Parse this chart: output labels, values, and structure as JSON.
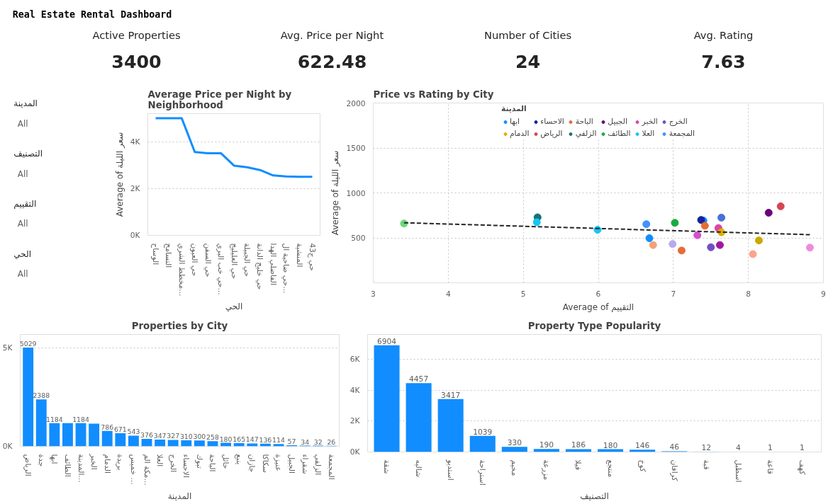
{
  "chart_data": [
    {
      "type": "other",
      "title": "Real Estate Rental Dashboard",
      "annotations": [
        "Active Properties",
        "3400",
        "Avg. Price per Night",
        "622.48",
        "Number of Cities",
        "24",
        "Avg. Rating",
        "7.63"
      ]
    },
    {
      "type": "other",
      "annotations": [
        "المدينة",
        "All",
        "التصنيف",
        "All",
        "التقييم",
        "All",
        "الحي",
        "All"
      ]
    },
    {
      "type": "line",
      "title": "Average Price per Night by Neighborhood",
      "xlabel": "الحي",
      "ylabel": "Average of سعر الليلة",
      "color": "#118dff",
      "grid": "y",
      "ylim": [
        0,
        5200
      ],
      "yticks": [
        {
          "value": 0,
          "label": "0K"
        },
        {
          "value": 2000,
          "label": "2K"
        },
        {
          "value": 4000,
          "label": "4K"
        }
      ],
      "categories": [
        "الوساح",
        "التسامح",
        "مخطط الشري...",
        "حي العيون",
        "حي السفن",
        "حي خب البري...",
        "حي العليليج",
        "حي الجبيلة",
        "حي خليج الدانة",
        "الفاضلي الهدا",
        "حي ضاحية ال...",
        "المنشية",
        "حي ج43"
      ],
      "values": [
        5000,
        5000,
        5000,
        3560,
        3510,
        3510,
        2980,
        2910,
        2790,
        2560,
        2520,
        2500,
        2500
      ]
    },
    {
      "type": "scatter",
      "title": "Price vs Rating by City",
      "xlabel": "Average of التقييم",
      "ylabel": "Average of سعر الليلة",
      "legend_title": "المدينة",
      "legend": "top",
      "marker": "circle",
      "grid": true,
      "xlim": [
        3,
        9
      ],
      "xticks": [
        3,
        4,
        5,
        6,
        7,
        8,
        9
      ],
      "ylim": [
        0,
        2000
      ],
      "yticks": [
        500,
        1000,
        1500,
        2000
      ],
      "series": [
        {
          "name": "ابها",
          "color": "#118dff",
          "x": [
            7.4
          ],
          "values": [
            692
          ]
        },
        {
          "name": "الاحساء",
          "color": "#12239e",
          "x": [
            7.37
          ],
          "values": [
            699
          ]
        },
        {
          "name": "الباحة",
          "color": "#e66c37",
          "x": [
            7.42
          ],
          "values": [
            634
          ]
        },
        {
          "name": "الجبيل",
          "color": "#6b007b",
          "x": [
            8.27
          ],
          "values": [
            779
          ]
        },
        {
          "name": "الخبر",
          "color": "#e044a7",
          "x": [
            7.6
          ],
          "values": [
            609
          ]
        },
        {
          "name": "الخرج",
          "color": "#744ec2",
          "x": [
            7.5
          ],
          "values": [
            395
          ]
        },
        {
          "name": "الدمام",
          "color": "#d9b300",
          "x": [
            7.64
          ],
          "values": [
            562
          ]
        },
        {
          "name": "الرياض",
          "color": "#d64550",
          "x": [
            8.43
          ],
          "values": [
            851
          ]
        },
        {
          "name": "الزلفي",
          "color": "#197278",
          "x": [
            5.19
          ],
          "values": [
            728
          ]
        },
        {
          "name": "الطائف",
          "color": "#1aab40",
          "x": [
            7.02
          ],
          "values": [
            667
          ]
        },
        {
          "name": "العلا",
          "color": "#15c6f4",
          "x": [
            5.18
          ],
          "values": [
            674
          ]
        },
        {
          "name": "المجمعة",
          "color": "#4092ff",
          "x": [
            6.64
          ],
          "values": [
            652
          ]
        },
        {
          "colors": [
            "#6cd87a",
            "#15c6f4",
            "#118dff",
            "#f4a27c",
            "#b7a9f0",
            "#e66c37",
            "#d64fd0",
            "#a01a9f",
            "#4a6fd8",
            "#c9a800",
            "#f9a58a",
            "#ee8cdb"
          ],
          "x": [
            3.41,
            5.99,
            6.68,
            6.73,
            6.99,
            7.11,
            7.32,
            7.62,
            7.64,
            8.14,
            8.06,
            8.82
          ],
          "values": [
            660,
            590,
            496,
            420,
            431,
            359,
            529,
            420,
            725,
            471,
            319,
            391
          ]
        },
        {
          "type": "line",
          "color": "#252423",
          "line_style": "dashed",
          "marker": "none",
          "x": [
            3.41,
            8.82
          ],
          "values": [
            668,
            535
          ]
        }
      ]
    },
    {
      "type": "bar",
      "title": "Properties by City",
      "xlabel": "المدينة",
      "color": "#118dff",
      "grid": "y",
      "ylim": [
        0,
        5700
      ],
      "yticks": [
        {
          "value": 0,
          "label": "0K"
        },
        {
          "value": 5000,
          "label": "5K"
        }
      ],
      "categories": [
        "الرياض",
        "جدة",
        "ابها",
        "الطائف",
        "المدينة...",
        "الخبر",
        "الدمام",
        "بريدة",
        "خميس ...",
        "مكة الم...",
        "العلا",
        "الخرج",
        "الاحساء",
        "تبوك",
        "الباحة",
        "حائل",
        "ينبع",
        "جازان",
        "سكاكا",
        "عنيزة",
        "الجبيل",
        "شقراء",
        "الزلفي",
        "المجمعة"
      ],
      "values": [
        5029,
        2388,
        1184,
        1180,
        1184,
        1150,
        786,
        671,
        543,
        376,
        347,
        327,
        310,
        300,
        258,
        180,
        165,
        147,
        136,
        114,
        57,
        34,
        32,
        26
      ],
      "value_labels": [
        "5029",
        "2388",
        "1184",
        null,
        "1184",
        null,
        "786",
        "671",
        "543",
        "376",
        "347",
        "327",
        "310",
        "300",
        "258",
        "180",
        "165",
        "147",
        "136",
        "114",
        "57",
        "34",
        "32",
        "26"
      ]
    },
    {
      "type": "bar",
      "title": "Property Type Popularity",
      "xlabel": "التصنيف",
      "color": "#118dff",
      "grid": "y",
      "data_labels": true,
      "ylim": [
        0,
        7600
      ],
      "yticks": [
        {
          "value": 0,
          "label": "0K"
        },
        {
          "value": 2000,
          "label": "2K"
        },
        {
          "value": 4000,
          "label": "4K"
        },
        {
          "value": 6000,
          "label": "6K"
        }
      ],
      "categories": [
        "شقة",
        "شاليه",
        "استديو",
        "استراحة",
        "مخيم",
        "مزرعة",
        "فيلا",
        "منتجع",
        "كوخ",
        "كرافان",
        "قبة",
        "اسطبل",
        "قاعة",
        "كهف"
      ],
      "values": [
        6904,
        4457,
        3417,
        1039,
        330,
        190,
        186,
        180,
        146,
        46,
        12,
        4,
        1,
        1
      ]
    }
  ]
}
